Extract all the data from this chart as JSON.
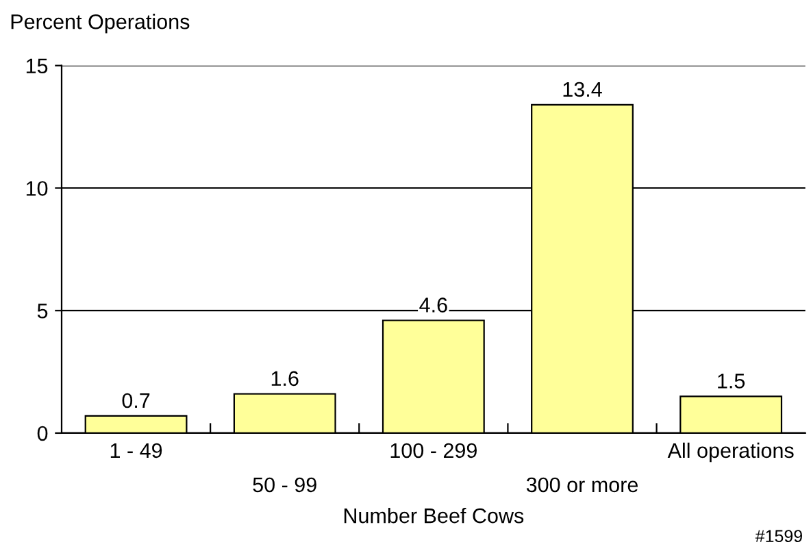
{
  "chart_data": {
    "type": "bar",
    "ylabel": "Percent Operations",
    "xlabel": "Number Beef Cows",
    "categories": [
      "1 - 49",
      "50 - 99",
      "100 - 299",
      "300 or more",
      "All operations"
    ],
    "values": [
      0.7,
      1.6,
      4.6,
      13.4,
      1.5
    ],
    "color": "#ffff99",
    "ylim": [
      0,
      15
    ],
    "yticks": [
      0,
      5,
      10,
      15
    ],
    "grid": "y",
    "data_labels": true,
    "annotations": [
      "#1599"
    ]
  }
}
